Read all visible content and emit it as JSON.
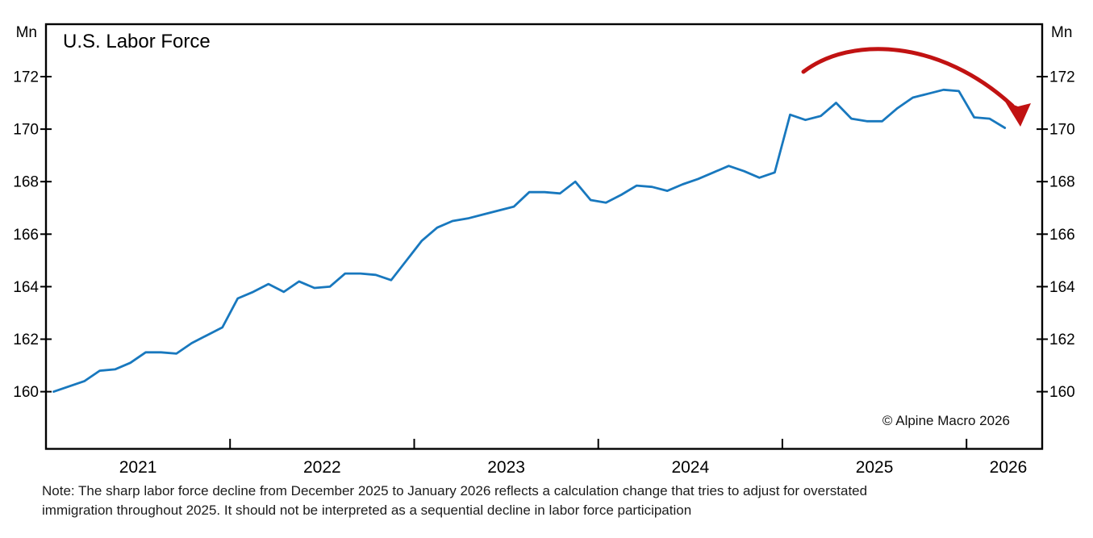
{
  "chart_data": {
    "type": "line",
    "title": "U.S. Labor Force",
    "unit_left": "Mn",
    "unit_right": "Mn",
    "ylim": [
      157.8,
      174.0
    ],
    "grid": false,
    "y_ticks": [
      160,
      162,
      164,
      166,
      168,
      170,
      172
    ],
    "x_year_labels": [
      "2021",
      "2022",
      "2023",
      "2024",
      "2025",
      "2026"
    ],
    "x_span": {
      "start": "2021-01",
      "end": "2026-03",
      "interval": "monthly"
    },
    "series": [
      {
        "name": "U.S. Labor Force (Mn)",
        "color": "#1878be",
        "values": [
          160.0,
          160.2,
          160.4,
          160.8,
          160.85,
          161.1,
          161.5,
          161.5,
          161.45,
          161.85,
          162.15,
          162.45,
          163.55,
          163.8,
          164.1,
          163.8,
          164.2,
          163.95,
          164.0,
          164.5,
          164.5,
          164.45,
          164.25,
          165.0,
          165.75,
          166.25,
          166.5,
          166.6,
          166.75,
          166.9,
          167.05,
          167.6,
          167.6,
          167.55,
          168.0,
          167.3,
          167.2,
          167.5,
          167.85,
          167.8,
          167.65,
          167.9,
          168.1,
          168.35,
          168.6,
          168.4,
          168.15,
          168.35,
          170.55,
          170.35,
          170.5,
          171.0,
          170.4,
          170.3,
          170.3,
          170.8,
          171.2,
          171.35,
          171.5,
          171.45,
          170.45,
          170.4,
          170.05
        ]
      }
    ],
    "annotation_arrow": {
      "shape": "curved-arc-down",
      "color": "#c11212"
    }
  },
  "footer": {
    "copyright": "© Alpine Macro 2026",
    "note_line1": "Note: The sharp labor force decline from December 2025 to January 2026 reflects a calculation change that tries to adjust for overstated",
    "note_line2": "immigration throughout 2025. It should not be interpreted as a sequential decline in labor force participation"
  }
}
